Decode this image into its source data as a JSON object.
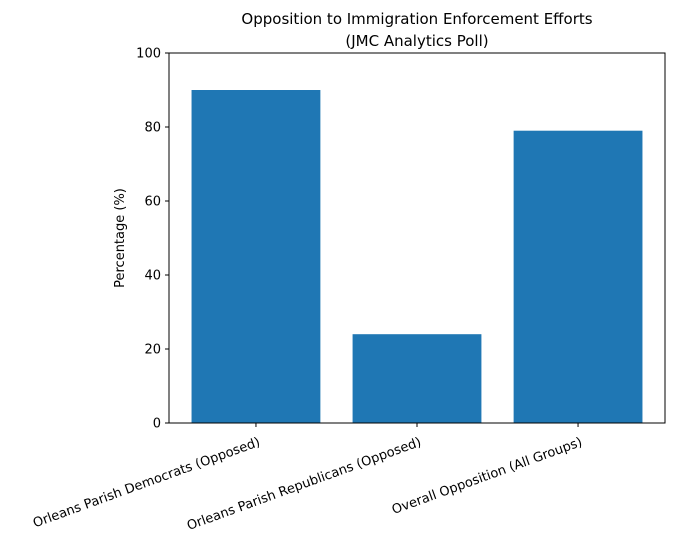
{
  "chart_data": {
    "type": "bar",
    "title": [
      "Opposition to Immigration Enforcement Efforts",
      "(JMC Analytics Poll)"
    ],
    "ylabel": "Percentage (%)",
    "categories": [
      "Orleans Parish Democrats (Opposed)",
      "Orleans Parish Republicans (Opposed)",
      "Overall Opposition (All Groups)"
    ],
    "values": [
      90,
      24,
      79
    ],
    "color": "#1f77b4",
    "ylim": [
      0,
      100
    ],
    "yticks": [
      0,
      20,
      40,
      60,
      80,
      100
    ],
    "grid": false
  }
}
